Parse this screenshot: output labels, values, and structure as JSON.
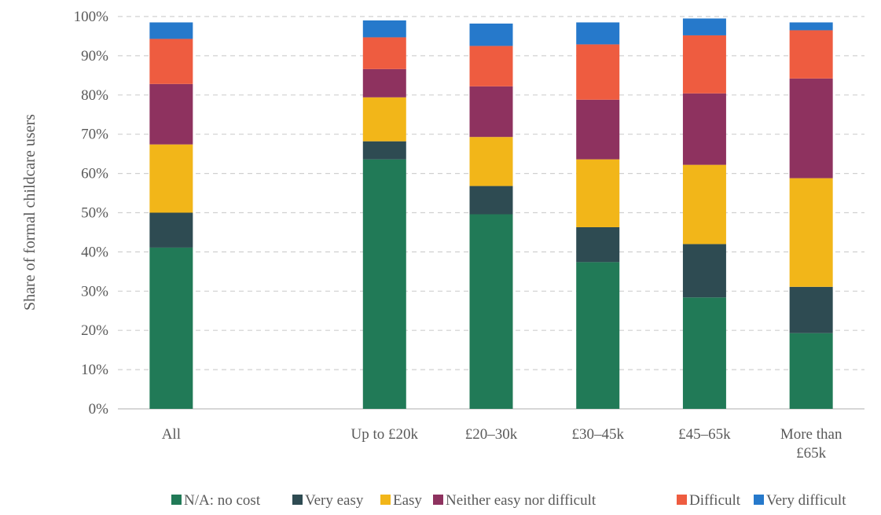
{
  "chart_data": {
    "type": "bar",
    "stacked": true,
    "title": "",
    "xlabel": "",
    "ylabel": "Share of formal childcare users",
    "ylim": [
      0,
      100
    ],
    "y_ticks": [
      "0%",
      "10%",
      "20%",
      "30%",
      "40%",
      "50%",
      "60%",
      "70%",
      "80%",
      "90%",
      "100%"
    ],
    "grid": true,
    "legend_position": "bottom",
    "categories": [
      {
        "key": "all",
        "lines": [
          "All"
        ]
      },
      {
        "key": "up-to-20k",
        "lines": [
          "Up to £20k"
        ]
      },
      {
        "key": "20-30k",
        "lines": [
          "£20–30k"
        ]
      },
      {
        "key": "30-45k",
        "lines": [
          "£30–45k"
        ]
      },
      {
        "key": "45-65k",
        "lines": [
          "£45–65k"
        ]
      },
      {
        "key": "more-than-65k",
        "lines": [
          "More than",
          "£65k"
        ]
      }
    ],
    "category_slots": [
      0,
      2,
      3,
      4,
      5,
      6
    ],
    "slot_count": 7,
    "series": [
      {
        "name": "N/A: no cost",
        "color": "#217A57",
        "values": [
          41.1,
          63.6,
          49.6,
          37.4,
          28.4,
          19.3
        ]
      },
      {
        "name": "Very easy",
        "color": "#2E4B52",
        "values": [
          8.9,
          4.6,
          7.2,
          8.9,
          13.6,
          11.8
        ]
      },
      {
        "name": "Easy",
        "color": "#F2B619",
        "values": [
          17.4,
          11.2,
          12.5,
          17.3,
          20.2,
          27.7
        ]
      },
      {
        "name": "Neither easy nor difficult",
        "color": "#8E325F",
        "values": [
          15.4,
          7.2,
          12.9,
          15.2,
          18.2,
          25.4
        ]
      },
      {
        "name": "Difficult",
        "color": "#EE5C40",
        "values": [
          11.5,
          8.1,
          10.3,
          14.1,
          14.8,
          12.3
        ]
      },
      {
        "name": "Very difficult",
        "color": "#2679CB",
        "values": [
          4.2,
          4.3,
          5.7,
          5.6,
          4.3,
          2.0
        ]
      }
    ]
  }
}
